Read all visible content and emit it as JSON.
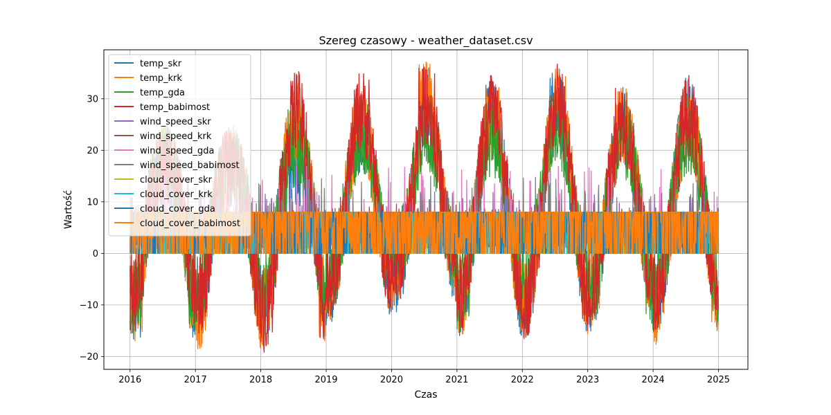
{
  "chart_data": {
    "type": "line",
    "title": "Szereg czasowy - weather_dataset.csv",
    "xlabel": "Czas",
    "ylabel": "Wartość",
    "xlim": [
      2015.6,
      2025.45
    ],
    "ylim": [
      -22.5,
      39.5
    ],
    "x_ticks": [
      2016,
      2017,
      2018,
      2019,
      2020,
      2021,
      2022,
      2023,
      2024,
      2025
    ],
    "y_ticks": [
      -20,
      -10,
      0,
      10,
      20,
      30
    ],
    "grid": true,
    "legend_position": "upper-left",
    "x_start": 2016.0,
    "x_end": 2025.0,
    "series": [
      {
        "name": "temp_skr",
        "color": "#1f77b4",
        "kind": "temp",
        "summer_peaks": [
          null,
          null,
          null,
          31,
          36,
          33,
          35,
          32,
          34
        ],
        "winter_troughs": [
          -17,
          -14,
          -18,
          -12,
          -8,
          -16,
          -15,
          -13,
          -15
        ]
      },
      {
        "name": "temp_krk",
        "color": "#ff7f0e",
        "kind": "temp",
        "summer_peaks": [
          null,
          null,
          33,
          32,
          37,
          33,
          36,
          32,
          33
        ],
        "winter_troughs": [
          -16,
          -19,
          -17,
          -11,
          -6,
          -15,
          -14,
          -12,
          -16
        ]
      },
      {
        "name": "temp_gda",
        "color": "#2ca02c",
        "kind": "temp",
        "summer_peaks": [
          null,
          null,
          28,
          30,
          31,
          30,
          31,
          29,
          30
        ],
        "winter_troughs": [
          -15,
          -12,
          -14,
          -10,
          -5,
          -13,
          -9,
          -13,
          -12
        ]
      },
      {
        "name": "temp_babimost",
        "color": "#d62728",
        "kind": "temp",
        "summer_peaks": [
          null,
          null,
          35,
          35,
          36,
          34,
          36,
          33,
          34
        ],
        "winter_troughs": [
          -13,
          -15,
          -18,
          -9,
          -7,
          -14,
          -15,
          -12,
          -13
        ]
      },
      {
        "name": "wind_speed_skr",
        "color": "#9467bd",
        "kind": "wind",
        "max": 12
      },
      {
        "name": "wind_speed_krk",
        "color": "#8c564b",
        "kind": "wind",
        "max": 10
      },
      {
        "name": "wind_speed_gda",
        "color": "#e377c2",
        "kind": "wind",
        "max": 17
      },
      {
        "name": "wind_speed_babimost",
        "color": "#7f7f7f",
        "kind": "wind",
        "max": 15
      },
      {
        "name": "cloud_cover_skr",
        "color": "#bcbd22",
        "kind": "cloud",
        "max": 8
      },
      {
        "name": "cloud_cover_krk",
        "color": "#17becf",
        "kind": "cloud",
        "max": 8
      },
      {
        "name": "cloud_cover_gda",
        "color": "#1f77b4",
        "kind": "cloud",
        "max": 8
      },
      {
        "name": "cloud_cover_babimost",
        "color": "#ff7f0e",
        "kind": "cloud",
        "max": 8
      }
    ]
  }
}
